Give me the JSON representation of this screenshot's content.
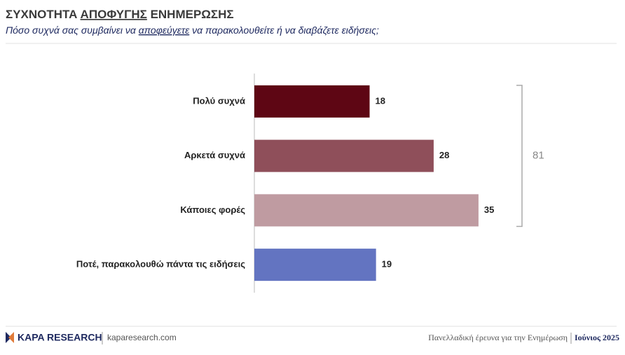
{
  "chart_data": {
    "type": "bar",
    "orientation": "horizontal",
    "title_parts": [
      "ΣΥΧΝΟΤΗΤΑ ",
      "ΑΠΟΦΥΓΗΣ",
      " ΕΝΗΜΕΡΩΣΗΣ"
    ],
    "subtitle_parts": [
      "Πόσο συχνά σας συμβαίνει να ",
      "αποφεύγετε",
      " να παρακολουθείτε ή να διαβάζετε ειδήσεις;"
    ],
    "categories": [
      "Πολύ συχνά",
      "Αρκετά συχνά",
      "Κάποιες φορές",
      "Ποτέ, παρακολουθώ πάντα τις ειδήσεις"
    ],
    "values": [
      18,
      28,
      35,
      19
    ],
    "colors": [
      "#5e0614",
      "#8f4f5a",
      "#bf9ba1",
      "#6374c1"
    ],
    "xlim": [
      0,
      50
    ],
    "bracket_total": 81
  },
  "footer": {
    "logo": "KAPA RESEARCH",
    "website": "kaparesearch.com",
    "survey": "Πανελλαδική έρευνα για την Ενημέρωση",
    "date": "Ιούνιος 2025"
  }
}
